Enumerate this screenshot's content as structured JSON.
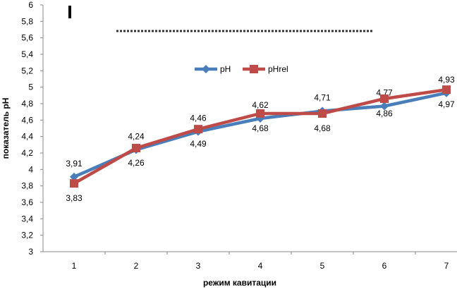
{
  "chart_data": {
    "type": "line",
    "xlabel": "режим кавитации",
    "ylabel": "показатель pH",
    "categories": [
      "1",
      "2",
      "3",
      "4",
      "5",
      "6",
      "7"
    ],
    "ylim": [
      3,
      6
    ],
    "yticks": [
      "3",
      "3,2",
      "3,4",
      "3,6",
      "3,8",
      "4",
      "4,2",
      "4,4",
      "4,6",
      "4,8",
      "5",
      "5,2",
      "5,4",
      "5,6",
      "5,8",
      "6"
    ],
    "grid": false,
    "legend": "top-center",
    "series": [
      {
        "name": "pH",
        "color": "#4a7ebb",
        "marker": "diamond",
        "values": [
          3.91,
          4.24,
          4.46,
          4.62,
          4.71,
          4.77,
          4.93
        ],
        "labels": [
          "3,91",
          "4,24",
          "4,46",
          "4,62",
          "4,71",
          "4,77",
          "4,93"
        ]
      },
      {
        "name": "pHrel",
        "color": "#be4b48",
        "marker": "square",
        "values": [
          3.83,
          4.26,
          4.49,
          4.68,
          4.68,
          4.86,
          4.97
        ],
        "labels": [
          "3,83",
          "4,26",
          "4,49",
          "4,68",
          "4,68",
          "4,86",
          "4,97"
        ]
      }
    ]
  }
}
